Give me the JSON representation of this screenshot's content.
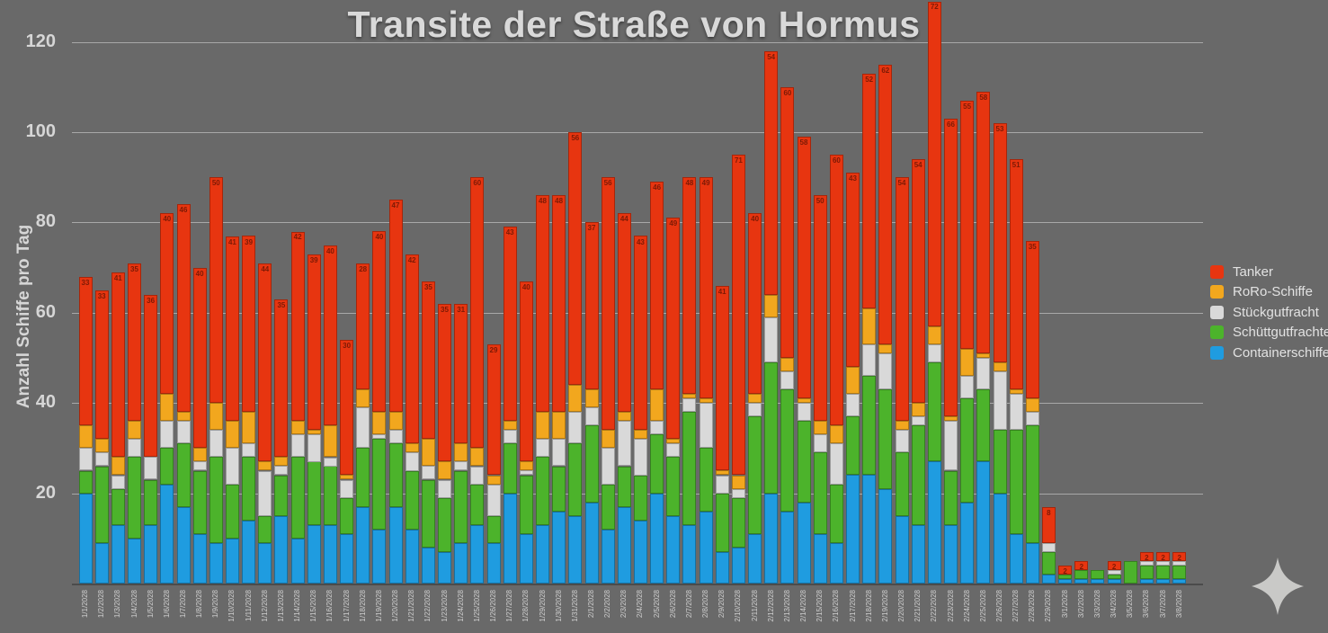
{
  "title": "Transite der Straße von Hormus",
  "y_axis": {
    "label": "Anzahl Schiffe pro Tag",
    "ticks": [
      20,
      40,
      60,
      80,
      100,
      120
    ]
  },
  "legend": {
    "position": "right",
    "items": [
      {
        "label": "Tanker",
        "color": "#e73510"
      },
      {
        "label": "RoRo-Schiffe",
        "color": "#f2a71e"
      },
      {
        "label": "Stückgutfracht",
        "color": "#d9d9d9"
      },
      {
        "label": "Schüttgutfrachter",
        "color": "#4cb32b"
      },
      {
        "label": "Containerschiffe",
        "color": "#1f9ce0"
      }
    ]
  },
  "decoration": {
    "sparkle_icon_color": "#c9c9c7"
  },
  "chart_data": {
    "type": "bar",
    "stacked": true,
    "title": "Transite der Straße von Hormus",
    "xlabel": "",
    "ylabel": "Anzahl Schiffe pro Tag",
    "ylim": [
      0,
      130
    ],
    "grid": true,
    "legend_position": "right",
    "bar_top_labels": "Tanker values (red segment) shown at top of each bar",
    "categories": [
      "1/1/2028",
      "1/2/2028",
      "1/3/2028",
      "1/4/2028",
      "1/5/2028",
      "1/6/2028",
      "1/7/2028",
      "1/8/2028",
      "1/9/2028",
      "1/10/2028",
      "1/11/2028",
      "1/12/2028",
      "1/13/2028",
      "1/14/2028",
      "1/15/2028",
      "1/16/2028",
      "1/17/2028",
      "1/18/2028",
      "1/19/2028",
      "1/20/2028",
      "1/21/2028",
      "1/22/2028",
      "1/23/2028",
      "1/24/2028",
      "1/25/2028",
      "1/26/2028",
      "1/27/2028",
      "1/28/2028",
      "1/29/2028",
      "1/30/2028",
      "1/31/2028",
      "2/1/2028",
      "2/2/2028",
      "2/3/2028",
      "2/4/2028",
      "2/5/2028",
      "2/6/2028",
      "2/7/2028",
      "2/8/2028",
      "2/9/2028",
      "2/10/2028",
      "2/11/2028",
      "2/12/2028",
      "2/13/2028",
      "2/14/2028",
      "2/15/2028",
      "2/16/2028",
      "2/17/2028",
      "2/18/2028",
      "2/19/2028",
      "2/20/2028",
      "2/21/2028",
      "2/22/2028",
      "2/23/2028",
      "2/24/2028",
      "2/25/2028",
      "2/26/2028",
      "2/27/2028",
      "2/28/2028",
      "2/29/2028",
      "3/1/2028",
      "3/2/2028",
      "3/3/2028",
      "3/4/2028",
      "3/5/2028",
      "3/6/2028",
      "3/7/2028",
      "3/8/2028"
    ],
    "series": [
      {
        "name": "Containerschiffe",
        "color": "#1f9ce0",
        "values": [
          20,
          9,
          13,
          10,
          13,
          22,
          17,
          11,
          9,
          10,
          14,
          9,
          15,
          10,
          13,
          13,
          11,
          17,
          12,
          17,
          12,
          8,
          7,
          9,
          13,
          9,
          20,
          11,
          13,
          16,
          15,
          18,
          12,
          17,
          14,
          20,
          15,
          13,
          16,
          7,
          8,
          11,
          20,
          16,
          18,
          11,
          9,
          24,
          24,
          21,
          15,
          13,
          27,
          13,
          18,
          27,
          20,
          11,
          9,
          2,
          1,
          1,
          1,
          1,
          0,
          1,
          1,
          1
        ]
      },
      {
        "name": "Schüttgutfrachter",
        "color": "#4cb32b",
        "values": [
          5,
          17,
          8,
          18,
          10,
          8,
          14,
          14,
          19,
          12,
          14,
          6,
          9,
          18,
          14,
          13,
          8,
          13,
          20,
          14,
          13,
          15,
          12,
          16,
          9,
          6,
          11,
          13,
          15,
          10,
          16,
          17,
          10,
          9,
          10,
          13,
          13,
          25,
          14,
          13,
          11,
          26,
          29,
          27,
          18,
          18,
          13,
          13,
          22,
          22,
          14,
          22,
          22,
          12,
          23,
          16,
          14,
          23,
          26,
          5,
          1,
          2,
          2,
          1,
          5,
          3,
          3,
          3
        ]
      },
      {
        "name": "Stückgutfracht",
        "color": "#d9d9d9",
        "values": [
          5,
          3,
          3,
          4,
          5,
          6,
          5,
          2,
          6,
          8,
          3,
          10,
          2,
          5,
          6,
          2,
          4,
          9,
          1,
          3,
          4,
          3,
          4,
          2,
          4,
          7,
          3,
          1,
          4,
          6,
          7,
          4,
          8,
          10,
          8,
          3,
          3,
          3,
          10,
          4,
          2,
          3,
          10,
          4,
          4,
          4,
          9,
          5,
          7,
          8,
          5,
          2,
          4,
          11,
          5,
          7,
          13,
          8,
          3,
          2,
          0,
          0,
          0,
          1,
          0,
          1,
          1,
          1
        ]
      },
      {
        "name": "RoRo-Schiffe",
        "color": "#f2a71e",
        "values": [
          5,
          3,
          4,
          4,
          0,
          6,
          2,
          3,
          6,
          6,
          7,
          2,
          2,
          3,
          1,
          7,
          1,
          4,
          5,
          4,
          2,
          6,
          4,
          4,
          4,
          2,
          2,
          2,
          6,
          6,
          6,
          4,
          4,
          2,
          2,
          7,
          1,
          1,
          1,
          1,
          3,
          2,
          5,
          3,
          1,
          3,
          4,
          6,
          8,
          2,
          2,
          3,
          4,
          1,
          6,
          1,
          2,
          1,
          3,
          0,
          0,
          0,
          0,
          0,
          0,
          0,
          0,
          0
        ]
      },
      {
        "name": "Tanker",
        "color": "#e73510",
        "values": [
          33,
          33,
          41,
          35,
          36,
          40,
          46,
          40,
          50,
          41,
          39,
          44,
          35,
          42,
          39,
          40,
          30,
          28,
          40,
          47,
          42,
          35,
          35,
          31,
          60,
          29,
          43,
          40,
          48,
          48,
          56,
          37,
          56,
          44,
          43,
          46,
          49,
          48,
          49,
          41,
          71,
          40,
          54,
          60,
          58,
          50,
          60,
          43,
          52,
          62,
          54,
          54,
          72,
          66,
          55,
          58,
          53,
          51,
          35,
          8,
          2,
          2,
          0,
          2,
          0,
          2,
          2,
          2
        ]
      }
    ]
  }
}
